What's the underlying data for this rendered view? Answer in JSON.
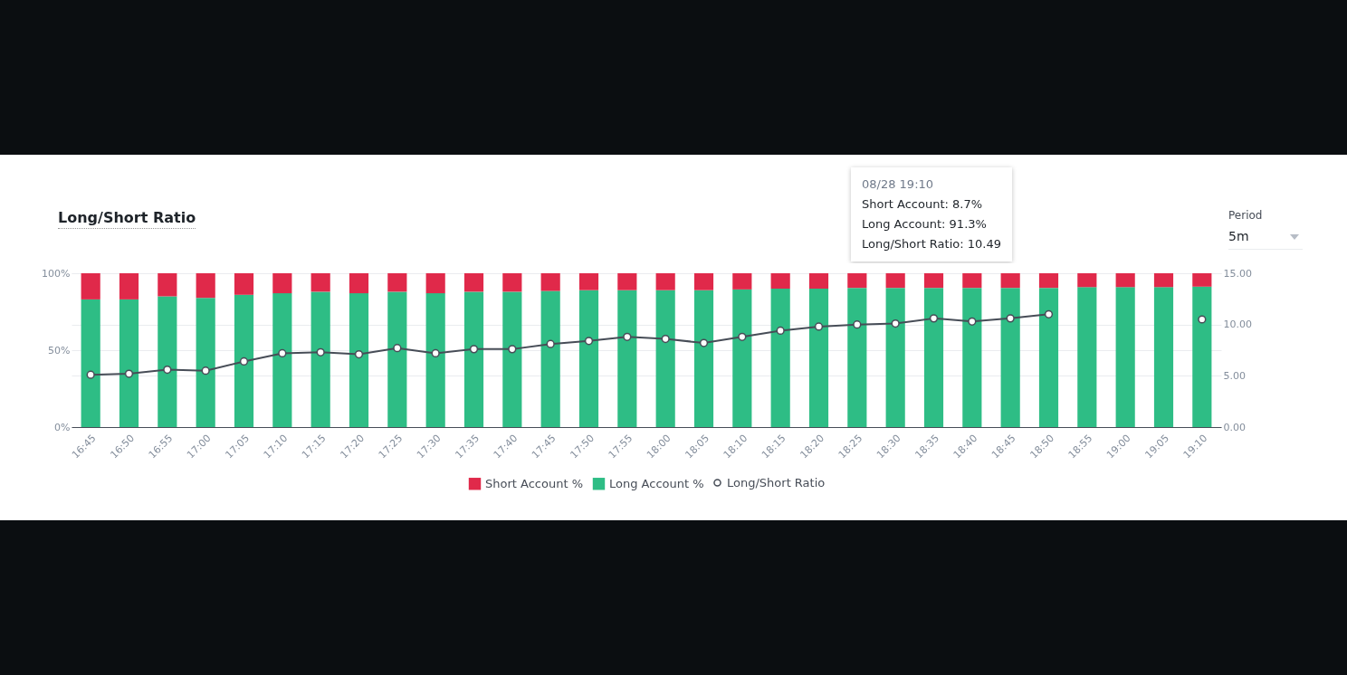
{
  "chart_data": {
    "type": "bar",
    "title": "Long/Short Ratio",
    "stacked": true,
    "grid": true,
    "legend": "bottom",
    "marker": "circle",
    "categories": [
      "16:45",
      "16:50",
      "16:55",
      "17:00",
      "17:05",
      "17:10",
      "17:15",
      "17:20",
      "17:25",
      "17:30",
      "17:35",
      "17:40",
      "17:45",
      "17:50",
      "17:55",
      "18:00",
      "18:05",
      "18:10",
      "18:15",
      "18:20",
      "18:25",
      "18:30",
      "18:35",
      "18:40",
      "18:45",
      "18:50",
      "18:55",
      "19:00",
      "19:05",
      "19:10"
    ],
    "series": [
      {
        "name": "Long Account %",
        "color": "#2ebd85",
        "values": [
          83,
          83,
          85,
          84,
          86,
          87,
          88,
          87,
          88,
          87,
          88,
          88,
          88.5,
          89,
          89,
          89,
          89,
          89.5,
          90,
          90,
          90.5,
          90.5,
          90.5,
          90.5,
          90.5,
          90.5,
          91,
          91,
          91,
          91.3
        ]
      },
      {
        "name": "Short Account %",
        "color": "#e0294a",
        "values": [
          17,
          17,
          15,
          16,
          14,
          13,
          12,
          13,
          12,
          13,
          12,
          12,
          11.5,
          11,
          11,
          11,
          11,
          10.5,
          10,
          10,
          9.5,
          9.5,
          9.5,
          9.5,
          9.5,
          9.5,
          9,
          9,
          9,
          8.7
        ]
      },
      {
        "name": "Long/Short Ratio",
        "type": "line",
        "axis": "y2",
        "color": "#474d57",
        "values": [
          5.1,
          5.2,
          5.6,
          5.5,
          6.4,
          7.2,
          7.3,
          7.1,
          7.7,
          7.2,
          7.6,
          7.6,
          8.1,
          8.4,
          8.8,
          8.6,
          8.2,
          8.8,
          9.4,
          9.8,
          10.0,
          10.1,
          10.6,
          10.3,
          10.6,
          11.0,
          null,
          null,
          null,
          10.5
        ]
      }
    ],
    "ylim": [
      0,
      100
    ],
    "yticks": [
      {
        "value": 0,
        "label": "0%"
      },
      {
        "value": 50,
        "label": "50%"
      },
      {
        "value": 100,
        "label": "100%"
      }
    ],
    "y2lim": [
      0,
      15
    ],
    "y2ticks": [
      {
        "value": 0,
        "label": "0.00"
      },
      {
        "value": 5,
        "label": "5.00"
      },
      {
        "value": 10,
        "label": "10.00"
      },
      {
        "value": 15,
        "label": "15.00"
      }
    ],
    "annotations": [
      "Period",
      "5m",
      "08/28 19:10",
      "Short Account: 8.7%",
      "Long Account: 91.3%",
      "Long/Short Ratio: 10.49"
    ]
  }
}
